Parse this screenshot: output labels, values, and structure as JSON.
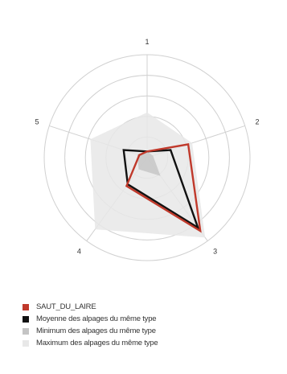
{
  "chart_data": {
    "type": "radar",
    "axes": [
      "1",
      "2",
      "3",
      "4",
      "5"
    ],
    "rmax": 5,
    "rings": [
      1,
      2,
      3,
      4,
      5
    ],
    "series": [
      {
        "name": "Maximum des alpages du même type",
        "values": [
          2.2,
          2.3,
          4.8,
          4.3,
          2.9
        ],
        "color": "#e8e8e8"
      },
      {
        "name": "Minimum des alpages du même type",
        "values": [
          0.3,
          0.3,
          1.1,
          0.7,
          0.5
        ],
        "color": "#c4c4c4"
      },
      {
        "name": "Moyenne des alpages du même type",
        "values": [
          0.3,
          1.2,
          4.2,
          1.6,
          1.2
        ],
        "color": "#111111"
      },
      {
        "name": "SAUT_DU_LAIRE",
        "values": [
          0.3,
          2.1,
          4.4,
          1.7,
          0.4
        ],
        "color": "#c0392b"
      }
    ],
    "legend": [
      "SAUT_DU_LAIRE",
      "Moyenne des alpages du même type",
      "Minimum des alpages du même type",
      "Maximum des alpages du même type"
    ],
    "legend_colors": [
      "#c0392b",
      "#111111",
      "#c4c4c4",
      "#e8e8e8"
    ],
    "legend_position": "bottom-left"
  }
}
